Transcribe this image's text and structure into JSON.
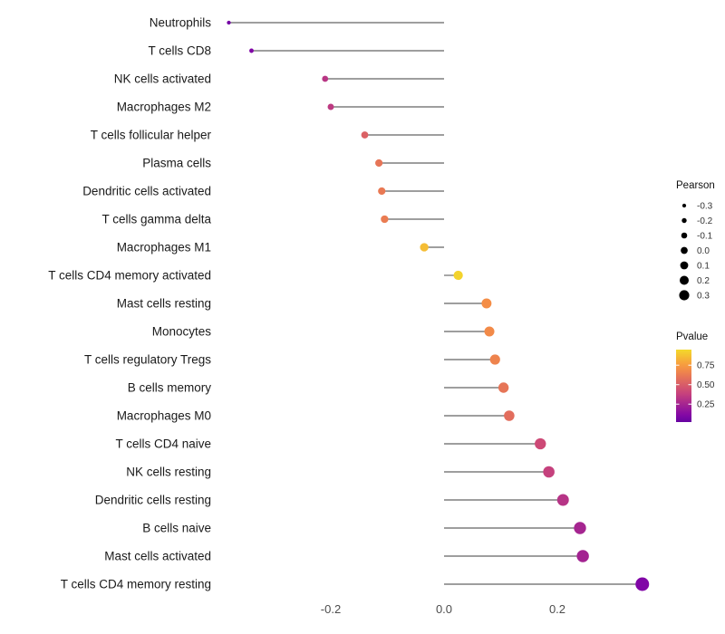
{
  "chart_data": {
    "type": "scatter",
    "variant": "lollipop",
    "orientation": "horizontal",
    "title": "",
    "xlabel": "",
    "ylabel": "",
    "grid": false,
    "background": "#ffffff",
    "xlim": [
      -0.42,
      0.38
    ],
    "x_ticks": [
      -0.2,
      0.0,
      0.2
    ],
    "x_tick_labels": [
      "-0.2",
      "0.0",
      "0.2"
    ],
    "categories": [
      "Neutrophils",
      "T cells CD8",
      "NK cells activated",
      "Macrophages M2",
      "T cells follicular helper",
      "Plasma cells",
      "Dendritic cells activated",
      "T cells gamma delta",
      "Macrophages M1",
      "T cells CD4 memory activated",
      "Mast cells resting",
      "Monocytes",
      "T cells regulatory  Tregs",
      "B cells memory",
      "Macrophages M0",
      "T cells CD4 naive",
      "NK cells resting",
      "Dendritic cells resting",
      "B cells naive",
      "Mast cells activated",
      "T cells CD4 memory resting"
    ],
    "points": [
      {
        "label": "Neutrophils",
        "pearson": -0.38,
        "pvalue": 0.06
      },
      {
        "label": "T cells CD8",
        "pearson": -0.34,
        "pvalue": 0.1
      },
      {
        "label": "NK cells activated",
        "pearson": -0.21,
        "pvalue": 0.33
      },
      {
        "label": "Macrophages M2",
        "pearson": -0.2,
        "pvalue": 0.35
      },
      {
        "label": "T cells follicular helper",
        "pearson": -0.14,
        "pvalue": 0.52
      },
      {
        "label": "Plasma cells",
        "pearson": -0.115,
        "pvalue": 0.6
      },
      {
        "label": "Dendritic cells activated",
        "pearson": -0.11,
        "pvalue": 0.62
      },
      {
        "label": "T cells gamma delta",
        "pearson": -0.105,
        "pvalue": 0.63
      },
      {
        "label": "Macrophages M1",
        "pearson": -0.035,
        "pvalue": 0.86
      },
      {
        "label": "T cells CD4 memory activated",
        "pearson": 0.025,
        "pvalue": 0.93
      },
      {
        "label": "Mast cells resting",
        "pearson": 0.075,
        "pvalue": 0.7
      },
      {
        "label": "Monocytes",
        "pearson": 0.08,
        "pvalue": 0.69
      },
      {
        "label": "T cells regulatory  Tregs",
        "pearson": 0.09,
        "pvalue": 0.66
      },
      {
        "label": "B cells memory",
        "pearson": 0.105,
        "pvalue": 0.6
      },
      {
        "label": "Macrophages M0",
        "pearson": 0.115,
        "pvalue": 0.57
      },
      {
        "label": "T cells CD4 naive",
        "pearson": 0.17,
        "pvalue": 0.42
      },
      {
        "label": "NK cells resting",
        "pearson": 0.185,
        "pvalue": 0.38
      },
      {
        "label": "Dendritic cells resting",
        "pearson": 0.21,
        "pvalue": 0.32
      },
      {
        "label": "B cells naive",
        "pearson": 0.24,
        "pvalue": 0.25
      },
      {
        "label": "Mast cells activated",
        "pearson": 0.245,
        "pvalue": 0.24
      },
      {
        "label": "T cells CD4 memory resting",
        "pearson": 0.35,
        "pvalue": 0.1
      }
    ],
    "legend": {
      "position": "right",
      "size_legend": {
        "title": "Pearson",
        "values": [
          -0.3,
          -0.2,
          -0.1,
          0.0,
          0.1,
          0.2,
          0.3
        ],
        "labels": [
          "-0.3",
          "-0.2",
          "-0.1",
          "0.0",
          "0.1",
          "0.2",
          "0.3"
        ]
      },
      "color_legend": {
        "title": "Pvalue",
        "palette": "plasma",
        "tick_labels": [
          "0.75",
          "0.50",
          "0.25"
        ],
        "tick_values": [
          0.75,
          0.5,
          0.25
        ],
        "range": [
          0.02,
          0.95
        ],
        "top_color": "#f3cd2f",
        "bottom_color": "#7304a5"
      }
    },
    "colors": {
      "stem": "#3c3c3c",
      "axis_text": "#4d4d4d",
      "category_text": "#1a1a1a",
      "legend_title_text": "#111111",
      "legend_label_text": "#333333"
    }
  }
}
